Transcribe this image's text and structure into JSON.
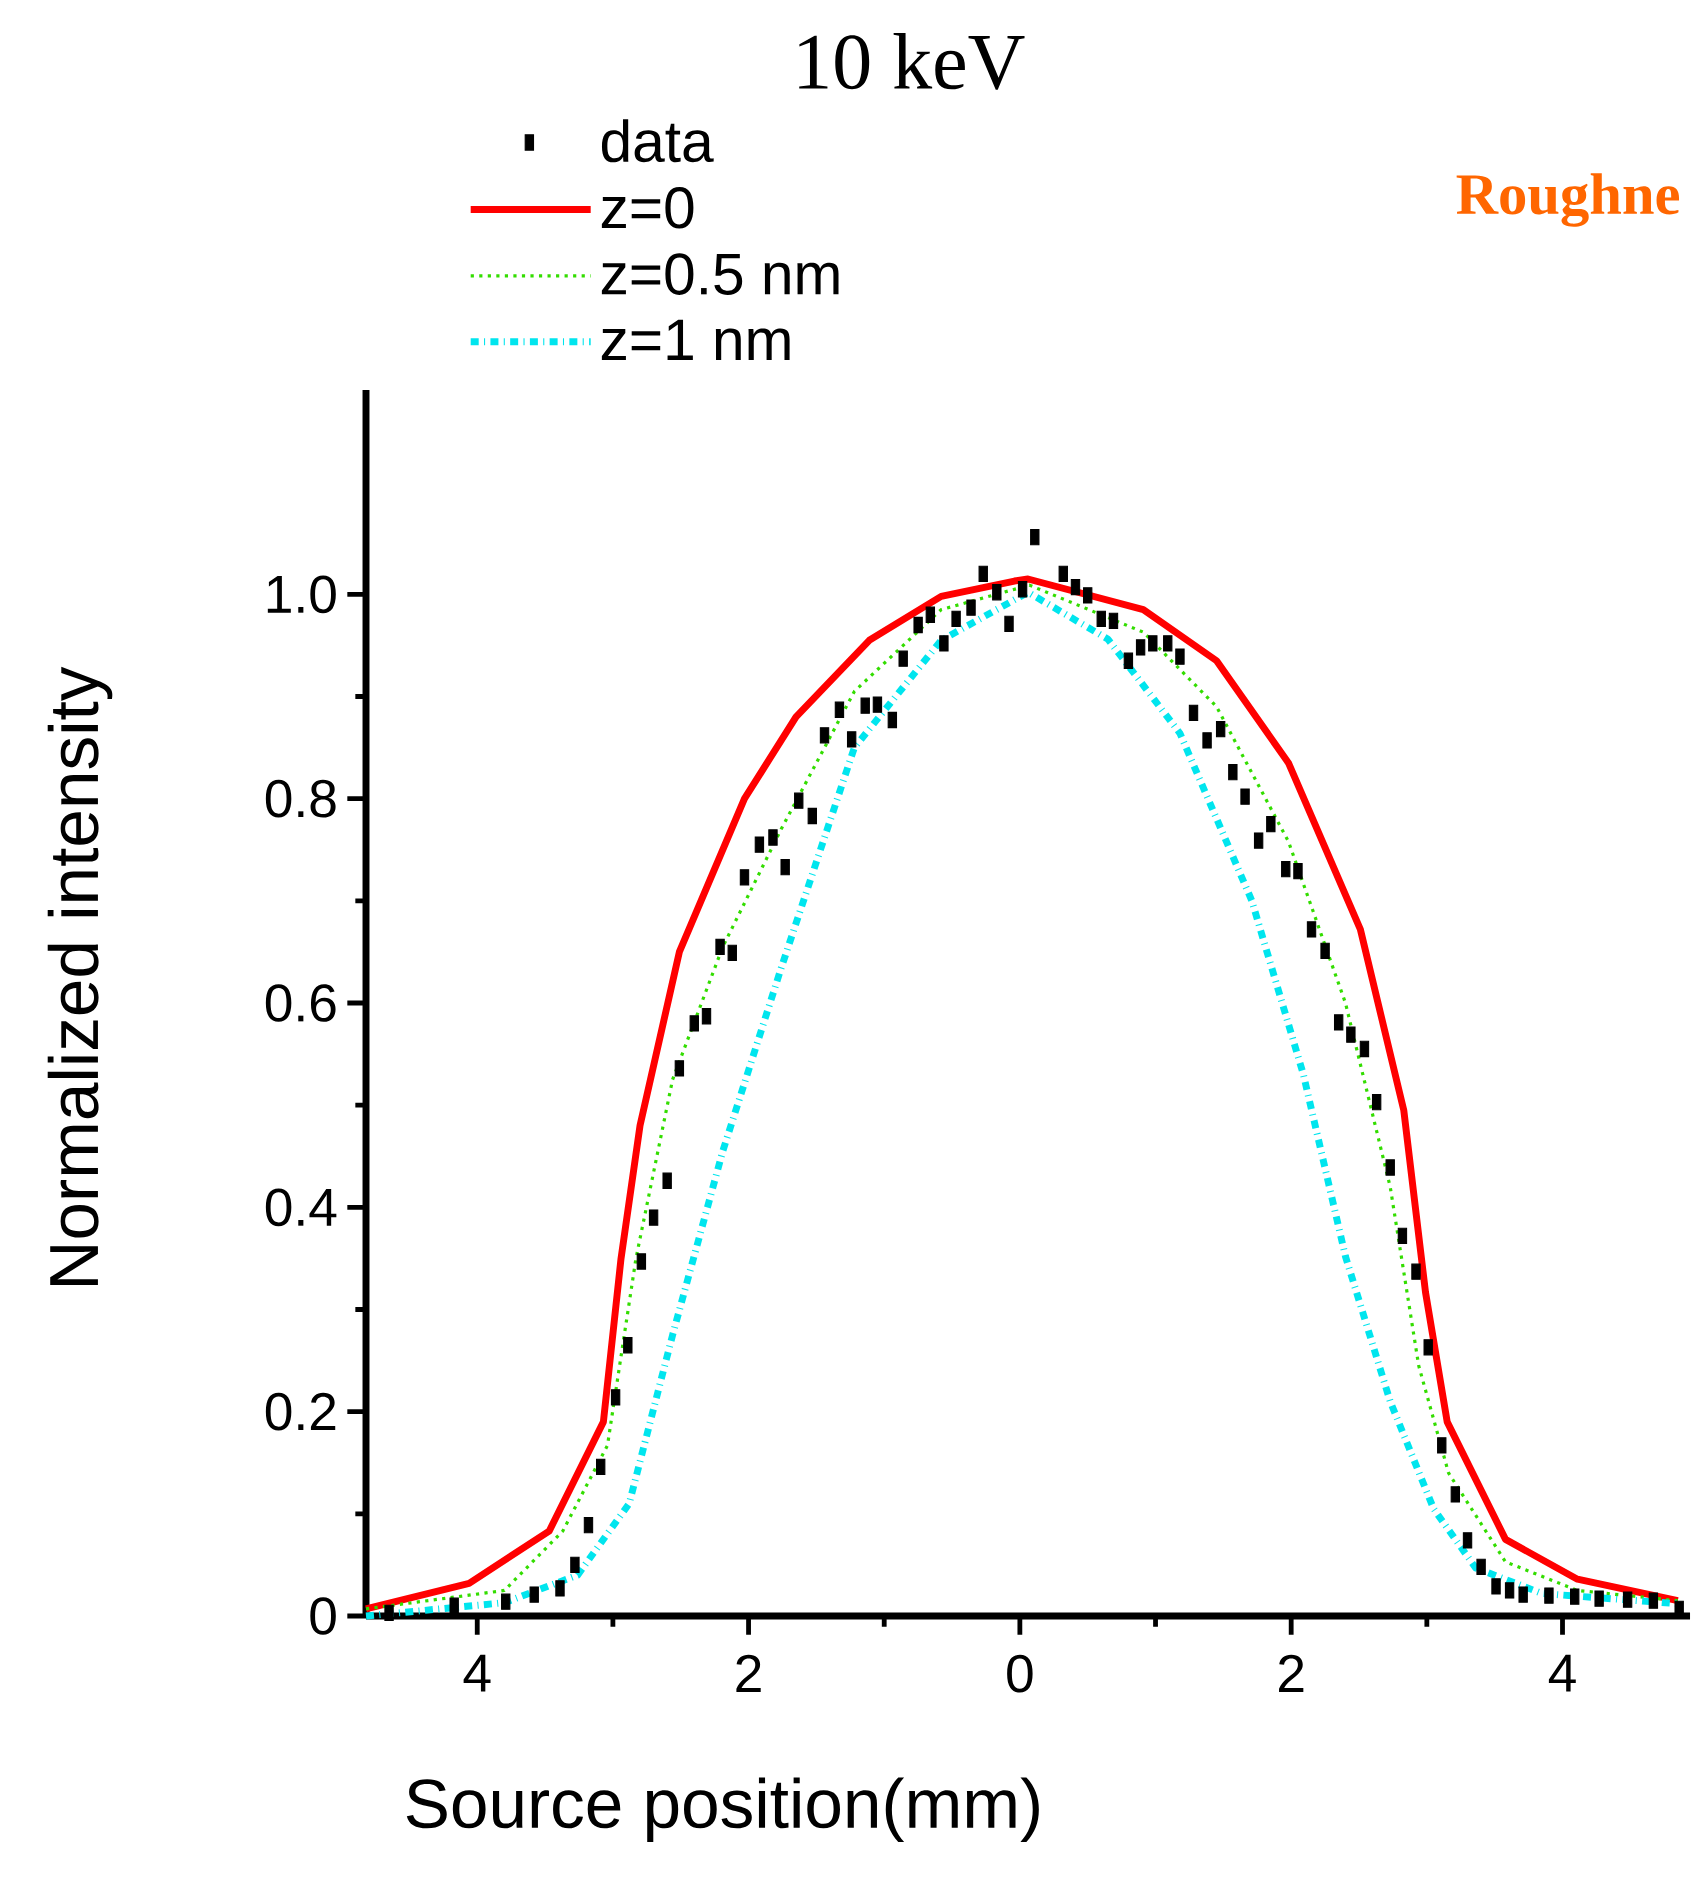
{
  "chart_data": {
    "type": "line",
    "title": "10 keV",
    "xlabel": "Source position(mm)",
    "ylabel": "Normalized intensity",
    "annotations": [
      "Roughne"
    ],
    "xlim": [
      -4.82,
      4.94
    ],
    "ylim": [
      0,
      1.2
    ],
    "xticks": [
      {
        "value": -4,
        "label": "4"
      },
      {
        "value": -2,
        "label": "2"
      },
      0,
      2,
      4
    ],
    "yticks": [
      0,
      0.2,
      0.4,
      0.6,
      0.8,
      {
        "value": 1,
        "label": "1.0"
      }
    ],
    "legend": "top left",
    "series": [
      {
        "name": "data",
        "type": "scatter",
        "marker": "square",
        "color": "#000000",
        "x": [
          -4.65,
          -4.17,
          -3.79,
          -3.58,
          -3.39,
          -3.28,
          -3.18,
          -3.09,
          -2.98,
          -2.89,
          -2.79,
          -2.7,
          -2.6,
          -2.51,
          -2.4,
          -2.31,
          -2.21,
          -2.12,
          -2.03,
          -1.92,
          -1.82,
          -1.73,
          -1.63,
          -1.53,
          -1.44,
          -1.33,
          -1.24,
          -1.14,
          -1.05,
          -0.94,
          -0.86,
          -0.75,
          -0.66,
          -0.56,
          -0.47,
          -0.36,
          -0.27,
          -0.17,
          -0.08,
          0.02,
          0.11,
          0.32,
          0.41,
          0.5,
          0.6,
          0.69,
          0.8,
          0.89,
          0.98,
          1.09,
          1.18,
          1.28,
          1.38,
          1.48,
          1.57,
          1.66,
          1.76,
          1.85,
          1.96,
          2.05,
          2.15,
          2.25,
          2.35,
          2.44,
          2.54,
          2.63,
          2.73,
          2.82,
          2.92,
          3.01,
          3.11,
          3.21,
          3.3,
          3.4,
          3.51,
          3.61,
          3.71,
          3.9,
          4.09,
          4.27,
          4.48,
          4.67,
          4.86
        ],
        "values": [
          0.003,
          0.01,
          0.014,
          0.021,
          0.027,
          0.05,
          0.089,
          0.146,
          0.214,
          0.265,
          0.347,
          0.39,
          0.426,
          0.536,
          0.58,
          0.587,
          0.655,
          0.649,
          0.723,
          0.755,
          0.762,
          0.733,
          0.798,
          0.783,
          0.862,
          0.887,
          0.858,
          0.891,
          0.892,
          0.877,
          0.937,
          0.97,
          0.98,
          0.952,
          0.976,
          0.987,
          1.02,
          1.002,
          0.971,
          1.005,
          1.056,
          1.02,
          1.007,
          0.999,
          0.976,
          0.974,
          0.935,
          0.948,
          0.952,
          0.952,
          0.939,
          0.884,
          0.857,
          0.868,
          0.826,
          0.802,
          0.759,
          0.775,
          0.731,
          0.729,
          0.672,
          0.651,
          0.581,
          0.569,
          0.555,
          0.503,
          0.439,
          0.372,
          0.337,
          0.263,
          0.167,
          0.119,
          0.074,
          0.048,
          0.029,
          0.025,
          0.021,
          0.02,
          0.019,
          0.017,
          0.016,
          0.015,
          0.007
        ]
      },
      {
        "name": "z=0",
        "line_style": "solid",
        "color": "#ff0000",
        "x": [
          -4.82,
          -4.06,
          -3.47,
          -3.07,
          -2.94,
          -2.8,
          -2.51,
          -2.03,
          -1.65,
          -1.11,
          -0.58,
          -0.04,
          0.06,
          0.91,
          1.45,
          1.98,
          2.51,
          2.83,
          2.99,
          3.15,
          3.58,
          4.11,
          4.85
        ],
        "values": [
          0.007,
          0.032,
          0.083,
          0.19,
          0.35,
          0.48,
          0.65,
          0.8,
          0.88,
          0.955,
          0.998,
          1.013,
          1.015,
          0.985,
          0.935,
          0.835,
          0.672,
          0.495,
          0.317,
          0.19,
          0.075,
          0.036,
          0.015
        ]
      },
      {
        "name": "z=0.5 nm",
        "line_style": "dotted",
        "color": "#33dd00",
        "x": [
          -4.82,
          -3.8,
          -3.37,
          -3.04,
          -2.83,
          -2.56,
          -2.19,
          -1.76,
          -1.22,
          -0.58,
          0.07,
          0.91,
          1.45,
          1.98,
          2.4,
          2.73,
          2.94,
          3.16,
          3.58,
          4.11,
          4.85
        ],
        "values": [
          0.007,
          0.025,
          0.083,
          0.167,
          0.35,
          0.525,
          0.655,
          0.77,
          0.905,
          0.985,
          1.009,
          0.963,
          0.89,
          0.758,
          0.6,
          0.42,
          0.245,
          0.14,
          0.053,
          0.025,
          0.015
        ]
      },
      {
        "name": "z=1 nm",
        "line_style": "dashdot",
        "color": "#00e5ee",
        "x": [
          -4.82,
          -3.8,
          -3.26,
          -2.88,
          -2.56,
          -2.19,
          -1.76,
          -1.22,
          -0.58,
          0.06,
          0.65,
          1.18,
          1.71,
          2.09,
          2.4,
          2.73,
          3.05,
          3.36,
          3.85,
          4.85
        ],
        "values": [
          0.0,
          0.013,
          0.04,
          0.11,
          0.275,
          0.455,
          0.634,
          0.85,
          0.955,
          1.002,
          0.956,
          0.864,
          0.7,
          0.53,
          0.352,
          0.21,
          0.105,
          0.047,
          0.022,
          0.012
        ]
      }
    ]
  }
}
